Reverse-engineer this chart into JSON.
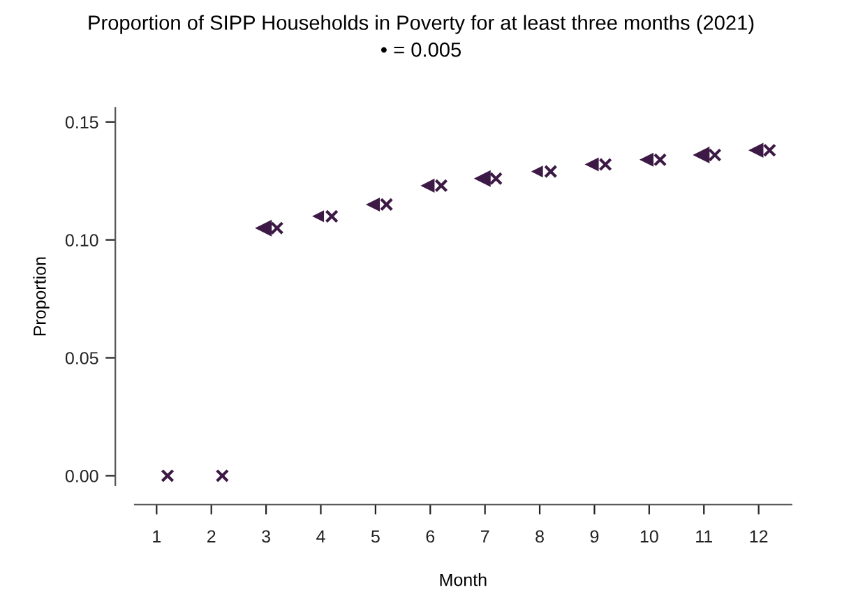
{
  "chart_data": {
    "type": "scatter",
    "title": "Proportion of SIPP Households in Poverty for at least three months (2021)",
    "subtitle": "• = 0.005",
    "xlabel": "Month",
    "ylabel": "Proportion",
    "xlim": [
      0.6,
      12.6
    ],
    "xticks": [
      1,
      2,
      3,
      4,
      5,
      6,
      7,
      8,
      9,
      10,
      11,
      12
    ],
    "ylim": [
      -0.004,
      0.156
    ],
    "yticks": [
      {
        "value": 0,
        "label": "0.00"
      },
      0.05,
      {
        "value": 0.1,
        "label": "0.10"
      },
      0.15
    ],
    "grid": false,
    "legend": false,
    "series": [
      {
        "type": "bubble",
        "marker": "triangle",
        "color": "#3d1a45",
        "x": [
          2.95,
          3.95,
          4.95,
          5.95,
          6.95,
          7.95,
          8.95,
          9.95,
          10.95,
          11.95
        ],
        "values": [
          0.105,
          0.11,
          0.115,
          0.123,
          0.126,
          0.129,
          0.132,
          0.134,
          0.136,
          0.138
        ],
        "sizes": [
          1,
          0.5,
          0.7,
          0.7,
          1,
          0.5,
          0.7,
          0.7,
          1,
          0.8
        ]
      },
      {
        "marker": "cross",
        "color": "#3d1a45",
        "x": [
          1.2,
          2.2,
          3.2,
          4.2,
          5.2,
          6.2,
          7.2,
          8.2,
          9.2,
          10.2,
          11.2,
          12.2
        ],
        "values": [
          0,
          0,
          0.105,
          0.11,
          0.115,
          0.123,
          0.126,
          0.129,
          0.132,
          0.134,
          0.136,
          0.138
        ]
      }
    ]
  }
}
